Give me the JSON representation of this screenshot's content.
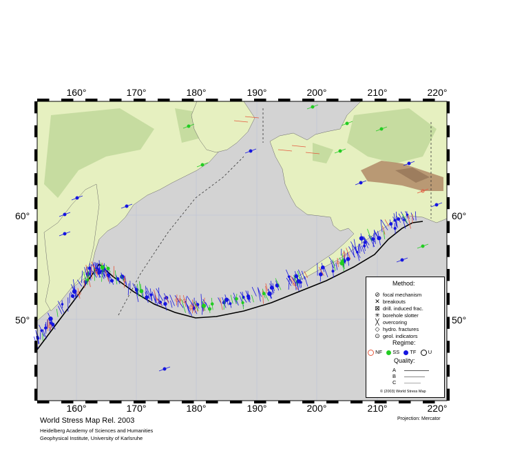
{
  "map": {
    "lon_ticks": [
      "160°",
      "170°",
      "180°",
      "190°",
      "200°",
      "210°",
      "220°"
    ],
    "lat_ticks": [
      "60°",
      "50°"
    ],
    "colors": {
      "ocean": "#d3d3d3",
      "land_low": "#e6f0c0",
      "land_mid": "#c6dca0",
      "mountain": "#b08a66",
      "normal": "#e4573c",
      "strike_slip": "#22cc22",
      "thrust": "#1515e0",
      "plate_boundary": "#000000"
    }
  },
  "legend": {
    "method_title": "Method:",
    "methods": [
      {
        "icon": "focal-mechanism-icon",
        "glyph": "⊘",
        "label": "focal mechanism"
      },
      {
        "icon": "breakouts-icon",
        "glyph": "✕",
        "label": "breakouts"
      },
      {
        "icon": "drill-induced-icon",
        "glyph": "⊠",
        "label": "drill. induced frac."
      },
      {
        "icon": "borehole-slotter-icon",
        "glyph": "✳",
        "label": "borehole slotter"
      },
      {
        "icon": "overcoring-icon",
        "glyph": "╳",
        "label": "overcoring"
      },
      {
        "icon": "hydro-fractures-icon",
        "glyph": "◇",
        "label": "hydro. fractures"
      },
      {
        "icon": "geol-indicators-icon",
        "glyph": "⊙",
        "label": "geol. indicators"
      }
    ],
    "regime_title": "Regime:",
    "regimes": [
      {
        "label": "NF",
        "color": "#e4573c",
        "fill": false
      },
      {
        "label": "SS",
        "color": "#22cc22",
        "fill": true
      },
      {
        "label": "TF",
        "color": "#1515e0",
        "fill": true
      },
      {
        "label": "U",
        "color": "#000000",
        "fill": false
      }
    ],
    "quality_title": "Quality:",
    "qualities": [
      "A",
      "B",
      "C"
    ],
    "copyright": "© (2003) World Stress Map"
  },
  "footer": {
    "title": "World Stress Map Rel. 2003",
    "line1": "Heidelberg Academy of Sciences and Humanities",
    "line2": "Geophysical Institute, University of Karlsruhe",
    "projection": "Projection: Mercator"
  }
}
